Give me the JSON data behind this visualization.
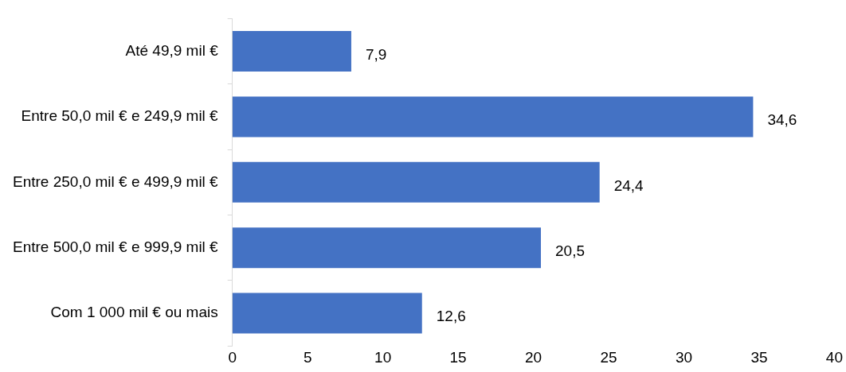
{
  "chart_data": {
    "type": "bar",
    "orientation": "horizontal",
    "categories": [
      "Até 49,9 mil €",
      "Entre 50,0 mil € e 249,9 mil €",
      "Entre 250,0 mil € e 499,9 mil €",
      "Entre 500,0 mil € e 999,9 mil €",
      "Com 1 000 mil € ou mais"
    ],
    "values": [
      7.9,
      34.6,
      24.4,
      20.5,
      12.6
    ],
    "value_labels": [
      "7,9",
      "34,6",
      "24,4",
      "20,5",
      "12,6"
    ],
    "color": "#4472c4",
    "xlim": [
      0,
      40
    ],
    "xticks": [
      0,
      5,
      10,
      15,
      20,
      25,
      30,
      35,
      40
    ],
    "grid": false,
    "legend": false
  }
}
